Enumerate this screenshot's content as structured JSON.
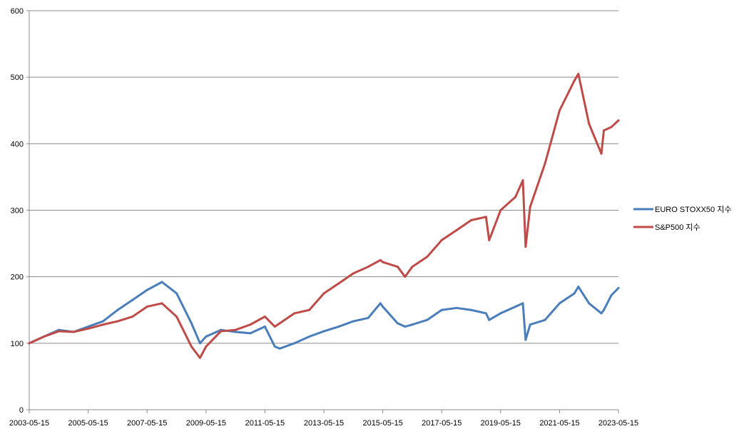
{
  "chart_data": {
    "type": "line",
    "title": "",
    "xlabel": "",
    "ylabel": "",
    "ylim": [
      0,
      600
    ],
    "yticks": [
      0,
      100,
      200,
      300,
      400,
      500,
      600
    ],
    "xlim": [
      "2003-05-15",
      "2023-05-15"
    ],
    "xticks": [
      "2003-05-15",
      "2005-05-15",
      "2007-05-15",
      "2009-05-15",
      "2011-05-15",
      "2013-05-15",
      "2015-05-15",
      "2017-05-15",
      "2019-05-15",
      "2021-05-15",
      "2023-05-15"
    ],
    "grid": "horizontal",
    "legend_position": "right",
    "x": [
      "2003-05-15",
      "2003-11-15",
      "2004-05-15",
      "2004-11-15",
      "2005-05-15",
      "2005-11-15",
      "2006-05-15",
      "2006-11-15",
      "2007-05-15",
      "2007-11-15",
      "2008-05-15",
      "2008-11-15",
      "2009-03-01",
      "2009-05-15",
      "2009-11-15",
      "2010-05-15",
      "2010-11-15",
      "2011-05-15",
      "2011-09-15",
      "2011-11-15",
      "2012-05-15",
      "2012-11-15",
      "2013-05-15",
      "2013-11-15",
      "2014-05-15",
      "2014-11-15",
      "2015-04-15",
      "2015-05-15",
      "2015-11-15",
      "2016-02-15",
      "2016-05-15",
      "2016-11-15",
      "2017-05-15",
      "2017-11-15",
      "2018-05-15",
      "2018-11-15",
      "2018-12-24",
      "2019-05-15",
      "2019-11-15",
      "2020-02-15",
      "2020-03-20",
      "2020-05-15",
      "2020-11-15",
      "2021-05-15",
      "2021-11-15",
      "2022-01-03",
      "2022-05-15",
      "2022-10-15",
      "2022-11-15",
      "2023-02-15",
      "2023-05-15"
    ],
    "series": [
      {
        "name": "EURO STOXX50 지수",
        "color": "#4a7ebb",
        "values": [
          100,
          110,
          120,
          117,
          125,
          133,
          150,
          165,
          180,
          192,
          175,
          130,
          100,
          110,
          120,
          117,
          115,
          125,
          95,
          92,
          100,
          110,
          118,
          125,
          133,
          138,
          160,
          155,
          130,
          125,
          128,
          135,
          150,
          153,
          150,
          145,
          135,
          145,
          155,
          160,
          105,
          128,
          135,
          160,
          175,
          185,
          160,
          145,
          150,
          172,
          183
        ]
      },
      {
        "name": "S&P500 지수",
        "color": "#be4b48",
        "values": [
          100,
          110,
          118,
          117,
          122,
          128,
          133,
          140,
          155,
          160,
          140,
          95,
          78,
          95,
          118,
          120,
          128,
          140,
          125,
          130,
          145,
          150,
          175,
          190,
          205,
          215,
          225,
          222,
          215,
          200,
          215,
          230,
          255,
          270,
          285,
          290,
          255,
          300,
          320,
          345,
          245,
          305,
          370,
          450,
          495,
          505,
          430,
          385,
          420,
          425,
          435
        ]
      }
    ]
  }
}
